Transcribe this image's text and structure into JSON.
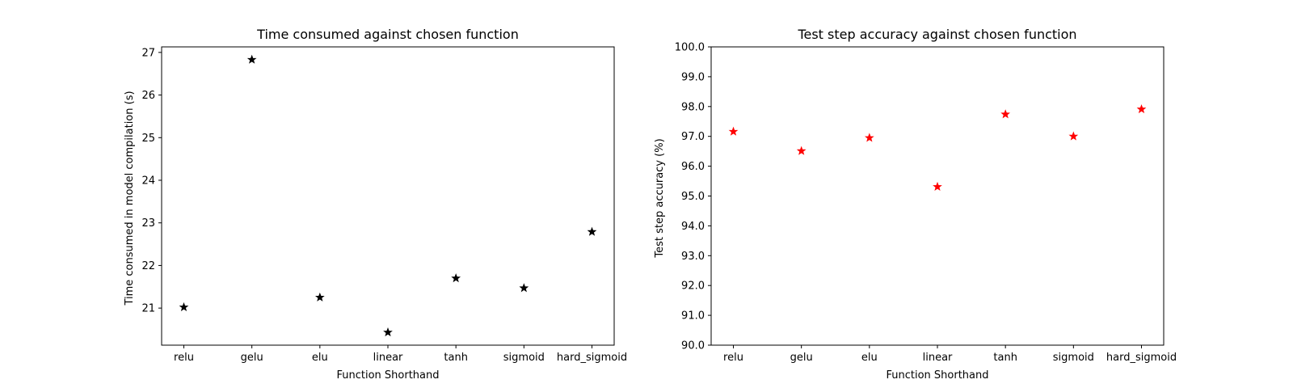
{
  "chart_data": [
    {
      "type": "scatter",
      "title": "Time consumed against chosen function",
      "xlabel": "Function Shorthand",
      "ylabel": "Time consumed in model compilation (s)",
      "categories": [
        "relu",
        "gelu",
        "elu",
        "linear",
        "tanh",
        "sigmoid",
        "hard_sigmoid"
      ],
      "values": [
        21.02,
        26.83,
        21.25,
        20.43,
        21.7,
        21.47,
        22.79
      ],
      "ylim": [
        20.13,
        27.13
      ],
      "yticks": [
        21,
        22,
        23,
        24,
        25,
        26,
        27
      ],
      "ytick_labels": [
        "21",
        "22",
        "23",
        "24",
        "25",
        "26",
        "27"
      ],
      "marker": "star",
      "color": "#000000",
      "grid": false
    },
    {
      "type": "scatter",
      "title": "Test step accuracy against chosen function",
      "xlabel": "Function Shorthand",
      "ylabel": "Test step accuracy (%)",
      "categories": [
        "relu",
        "gelu",
        "elu",
        "linear",
        "tanh",
        "sigmoid",
        "hard_sigmoid"
      ],
      "values": [
        97.16,
        96.51,
        96.95,
        95.31,
        97.74,
        97.0,
        97.91
      ],
      "ylim": [
        90.0,
        100.0
      ],
      "yticks": [
        90,
        91,
        92,
        93,
        94,
        95,
        96,
        97,
        98,
        99,
        100
      ],
      "ytick_labels": [
        "90.0",
        "91.0",
        "92.0",
        "93.0",
        "94.0",
        "95.0",
        "96.0",
        "97.0",
        "98.0",
        "99.0",
        "100.0"
      ],
      "marker": "star",
      "color": "#ff0000",
      "grid": false
    }
  ]
}
